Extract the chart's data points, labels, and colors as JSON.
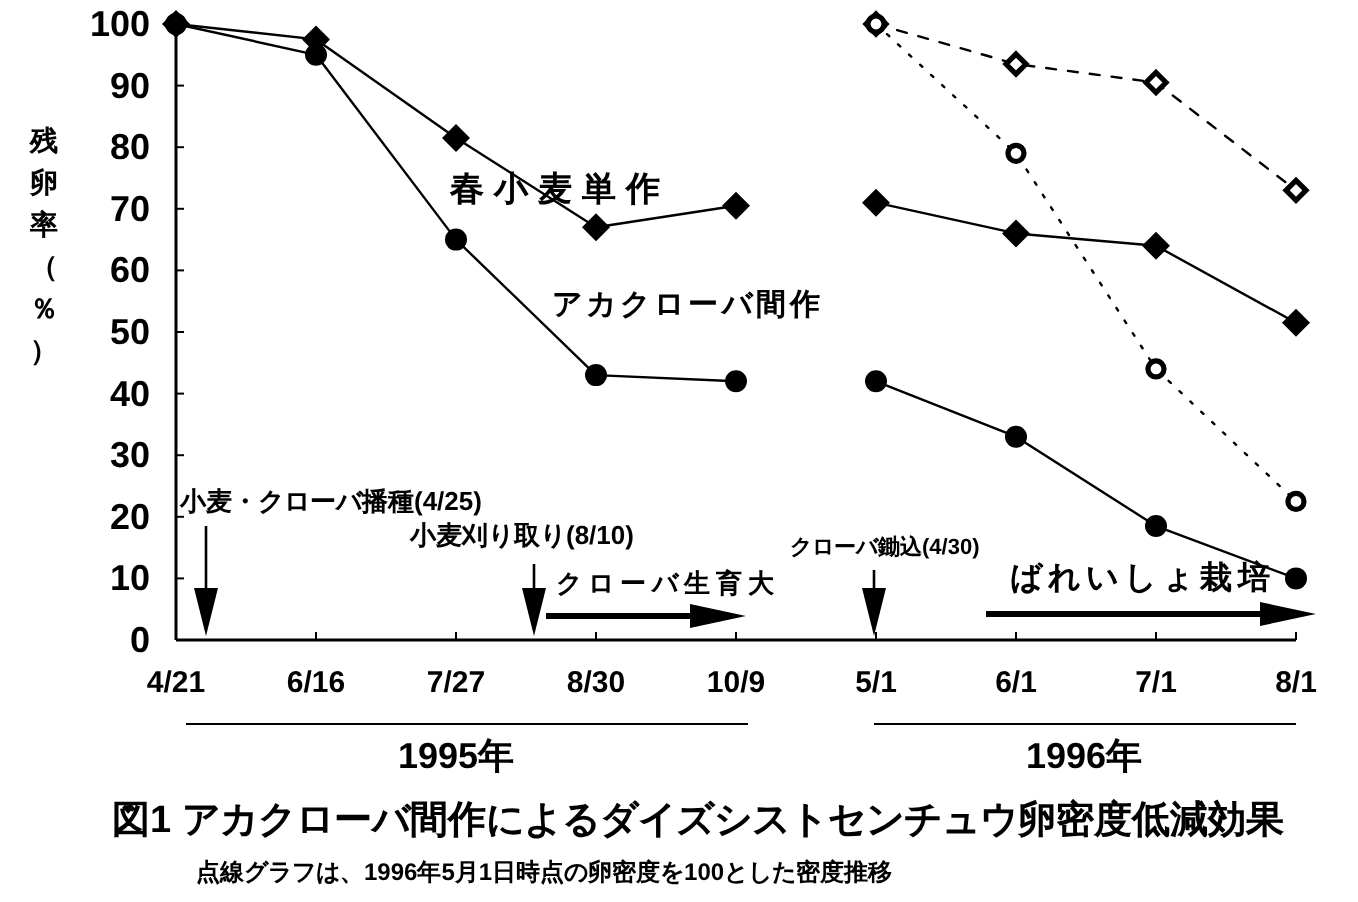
{
  "chart_data": {
    "type": "line",
    "title": "図1 アカクローバ間作によるダイズシストセンチュウ卵密度低減効果",
    "subtitle": "点線グラフは、1996年5月1日時点の卵密度を100とした密度推移",
    "ylabel": "残卵率（％）",
    "categories": [
      "4/21",
      "6/16",
      "7/27",
      "8/30",
      "10/9",
      "5/1",
      "6/1",
      "7/1",
      "8/1"
    ],
    "ylim": [
      0,
      100
    ],
    "yticks": [
      0,
      10,
      20,
      30,
      40,
      50,
      60,
      70,
      80,
      90,
      100
    ],
    "series": [
      {
        "name": "春小麦単作",
        "color": "#000000",
        "marker": "diamond",
        "line_style": "solid",
        "values": [
          100,
          97.5,
          81.5,
          67,
          70.5,
          null,
          null,
          null,
          null
        ]
      },
      {
        "name": "アカクローバ間作",
        "color": "#000000",
        "marker": "circle",
        "line_style": "solid",
        "values": [
          100,
          95,
          65,
          43,
          42,
          null,
          null,
          null,
          null
        ]
      },
      {
        "color": "#000000",
        "marker": "diamond",
        "line_style": "solid",
        "values": [
          null,
          null,
          null,
          null,
          null,
          71,
          66,
          64,
          51.5
        ]
      },
      {
        "color": "#000000",
        "marker": "circle",
        "line_style": "solid",
        "values": [
          null,
          null,
          null,
          null,
          null,
          42,
          33,
          18.5,
          10
        ]
      },
      {
        "color": "#000000",
        "marker": "diamond",
        "line_style": "dashed",
        "values": [
          null,
          null,
          null,
          null,
          null,
          100,
          93.5,
          90.5,
          73
        ]
      },
      {
        "color": "#000000",
        "marker": "circle",
        "line_style": "dotted",
        "values": [
          null,
          null,
          null,
          null,
          null,
          100,
          79,
          44,
          22.5
        ]
      }
    ],
    "annotations": [
      "1995年",
      "1996年",
      "小麦・クローバ播種(4/25)",
      "小麦刈り取り(8/10)",
      "クローバ生育大",
      "クローバ鋤込(4/30)",
      "ばれいしょ栽培"
    ]
  }
}
